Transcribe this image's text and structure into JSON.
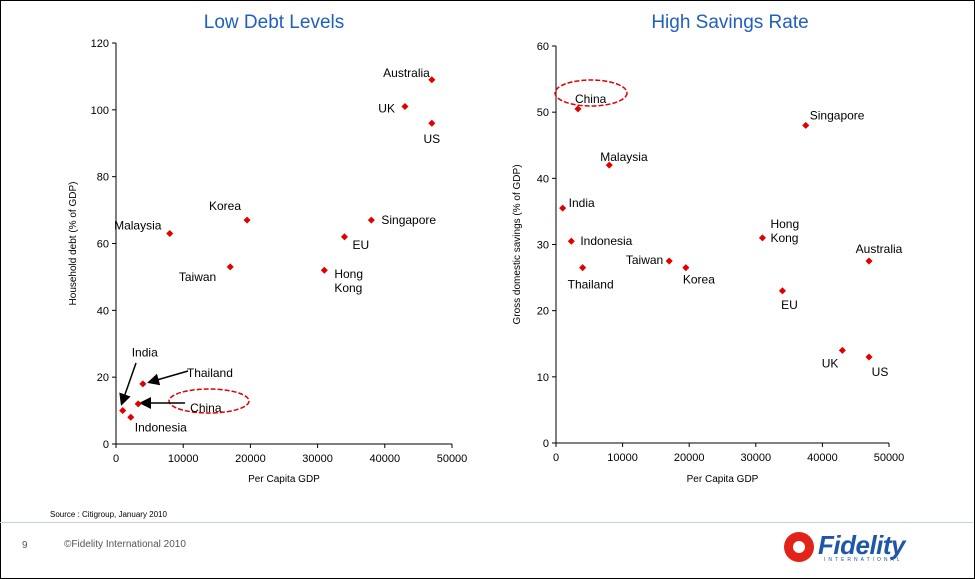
{
  "chart_data": [
    {
      "type": "scatter",
      "title": "Low Debt Levels",
      "xlabel": "Per Capita GDP",
      "ylabel": "Household debt (% of GDP)",
      "xlim": [
        0,
        50000
      ],
      "ylim": [
        0,
        120
      ],
      "xticks": [
        0,
        10000,
        20000,
        30000,
        40000,
        50000
      ],
      "yticks": [
        0,
        20,
        40,
        60,
        80,
        100,
        120
      ],
      "highlight": "China",
      "points": [
        {
          "label": "Australia",
          "x": 47000,
          "y": 109
        },
        {
          "label": "UK",
          "x": 43000,
          "y": 101
        },
        {
          "label": "US",
          "x": 47000,
          "y": 96
        },
        {
          "label": "Korea",
          "x": 19500,
          "y": 67
        },
        {
          "label": "Malaysia",
          "x": 8000,
          "y": 63
        },
        {
          "label": "Singapore",
          "x": 38000,
          "y": 67
        },
        {
          "label": "EU",
          "x": 34000,
          "y": 62
        },
        {
          "label": "Taiwan",
          "x": 17000,
          "y": 53
        },
        {
          "label": "Hong Kong",
          "x": 31000,
          "y": 52
        },
        {
          "label": "India",
          "x": 1000,
          "y": 10
        },
        {
          "label": "Thailand",
          "x": 4000,
          "y": 18
        },
        {
          "label": "China",
          "x": 3300,
          "y": 12
        },
        {
          "label": "Indonesia",
          "x": 2200,
          "y": 8
        }
      ]
    },
    {
      "type": "scatter",
      "title": "High Savings Rate",
      "xlabel": "Per Capita GDP",
      "ylabel": "Gross domestic savings (% of GDP)",
      "xlim": [
        0,
        50000
      ],
      "ylim": [
        0,
        60
      ],
      "xticks": [
        0,
        10000,
        20000,
        30000,
        40000,
        50000
      ],
      "yticks": [
        0,
        10,
        20,
        30,
        40,
        50,
        60
      ],
      "highlight": "China",
      "points": [
        {
          "label": "China",
          "x": 3300,
          "y": 50.5
        },
        {
          "label": "Singapore",
          "x": 37500,
          "y": 48
        },
        {
          "label": "Malaysia",
          "x": 8000,
          "y": 42
        },
        {
          "label": "India",
          "x": 1000,
          "y": 35.5
        },
        {
          "label": "Indonesia",
          "x": 2300,
          "y": 30.5
        },
        {
          "label": "Hong Kong",
          "x": 31000,
          "y": 31
        },
        {
          "label": "Taiwan",
          "x": 17000,
          "y": 27.5
        },
        {
          "label": "Korea",
          "x": 19500,
          "y": 26.5
        },
        {
          "label": "Thailand",
          "x": 4000,
          "y": 26.5
        },
        {
          "label": "Australia",
          "x": 47000,
          "y": 27.5
        },
        {
          "label": "EU",
          "x": 34000,
          "y": 23
        },
        {
          "label": "UK",
          "x": 43000,
          "y": 14
        },
        {
          "label": "US",
          "x": 47000,
          "y": 13
        }
      ]
    }
  ],
  "footer": {
    "source": "Source : Citigroup, January 2010",
    "page_number": "9",
    "copyright": "©Fidelity International 2010",
    "logo_text": "Fidelity",
    "logo_subtext": "INTERNATIONAL"
  },
  "colors": {
    "title": "#1f5fbf",
    "marker": "#e00000",
    "highlight_ellipse": "#e00000",
    "text": "#000000"
  }
}
